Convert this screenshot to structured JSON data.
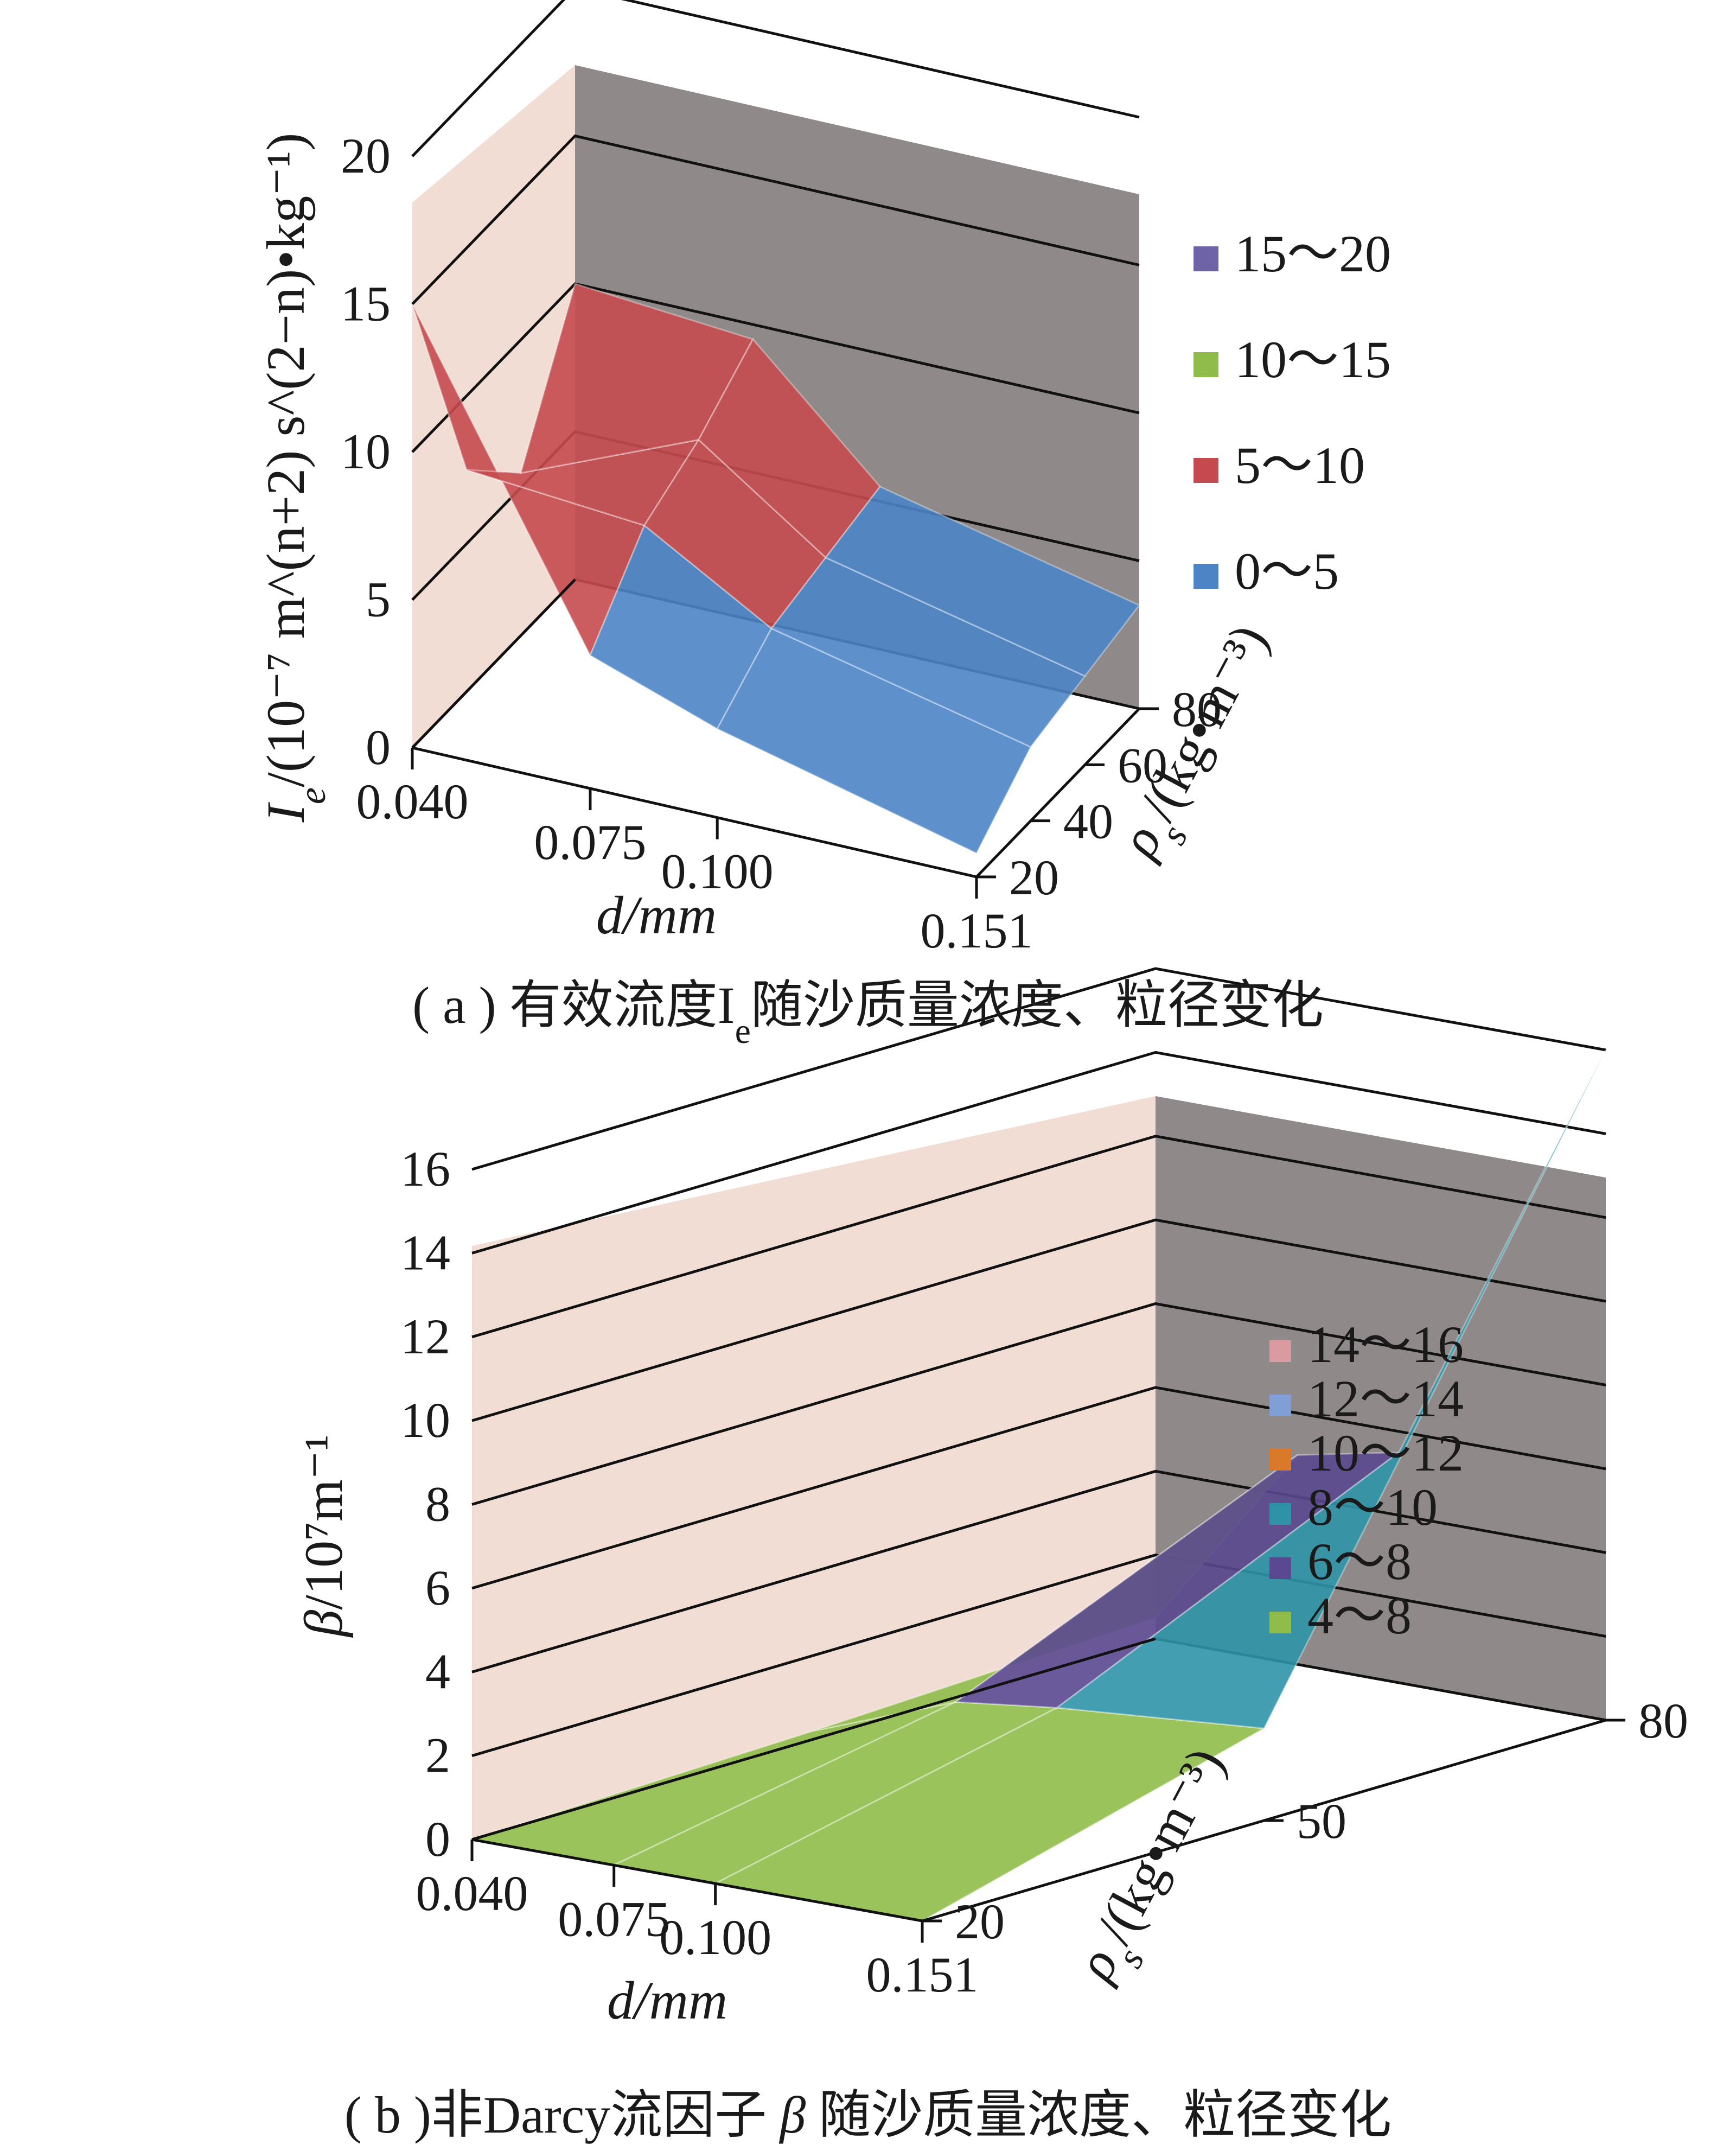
{
  "colors": {
    "left_wall": "#f1ddd3",
    "back_wall": "#8f8a89",
    "floor": "#ffffff"
  },
  "chart_data": [
    {
      "type": "surface3d",
      "panel": "a",
      "caption_prefix": "( a )",
      "caption": "有效流度I",
      "caption_sub": "e",
      "caption_suffix": "随沙质量浓度、粒径变化",
      "xlabel": "d/mm",
      "ylabel_text": "I",
      "ylabel_sub": "e",
      "ylabel_unit": "/(10⁻⁷ m^(n+2) s^(2−n)•kg⁻¹)",
      "zlabel_text": "ρ",
      "zlabel_sub": "s",
      "zlabel_unit": "/(kg•m⁻³)",
      "x_ticks": [
        "0.040",
        "0.075",
        "0.100",
        "0.151"
      ],
      "depth_ticks": [
        "20",
        "40",
        "60",
        "80"
      ],
      "y_ticks": [
        "0",
        "5",
        "10",
        "15",
        "20"
      ],
      "ylim": [
        0,
        20
      ],
      "legend": [
        {
          "label": "15～20",
          "color": "#6f63a8"
        },
        {
          "label": "10～15",
          "color": "#8fbc4a"
        },
        {
          "label": "5～10",
          "color": "#c54a4f"
        },
        {
          "label": "0～5",
          "color": "#4c84c6"
        }
      ],
      "x": [
        0.04,
        0.075,
        0.1,
        0.151
      ],
      "depth": [
        20,
        40,
        60,
        80
      ],
      "z": [
        [
          15.0,
          4.5,
          3.0,
          0.8
        ],
        [
          7.5,
          7.0,
          4.5,
          2.5
        ],
        [
          5.5,
          8.0,
          5.0,
          3.0
        ],
        [
          10.0,
          9.5,
          5.5,
          3.5
        ]
      ]
    },
    {
      "type": "surface3d",
      "panel": "b",
      "caption_prefix": "( b )",
      "caption": "非Darcy流因子",
      "caption_var": "β",
      "caption_suffix": "随沙质量浓度、粒径变化",
      "xlabel": "d/mm",
      "ylabel_text": "β",
      "ylabel_unit": "/10⁷m⁻¹",
      "zlabel_text": "ρ",
      "zlabel_sub": "s",
      "zlabel_unit": "/(kg•m⁻³)",
      "x_ticks": [
        "0.040",
        "0.075",
        "0.100",
        "0.151"
      ],
      "depth_ticks": [
        "20",
        "50",
        "80"
      ],
      "y_ticks": [
        "0",
        "2",
        "4",
        "6",
        "8",
        "10",
        "12",
        "14",
        "16"
      ],
      "ylim": [
        0,
        16
      ],
      "legend": [
        {
          "label": "14～16",
          "color": "#d99aa0"
        },
        {
          "label": "12～14",
          "color": "#7f9fd6"
        },
        {
          "label": "10～12",
          "color": "#d97a2b"
        },
        {
          "label": "8～10",
          "color": "#2f93a8"
        },
        {
          "label": "6～8",
          "color": "#5a4890"
        },
        {
          "label": "4～8",
          "color": "#8fbc4a"
        }
      ],
      "x": [
        0.04,
        0.075,
        0.1,
        0.151
      ],
      "depth": [
        20,
        50,
        80
      ],
      "z": [
        [
          0.0,
          0.0,
          0.0,
          0.0
        ],
        [
          0.2,
          1.5,
          1.8,
          2.2
        ],
        [
          0.5,
          5.0,
          5.5,
          16.0
        ]
      ]
    }
  ]
}
